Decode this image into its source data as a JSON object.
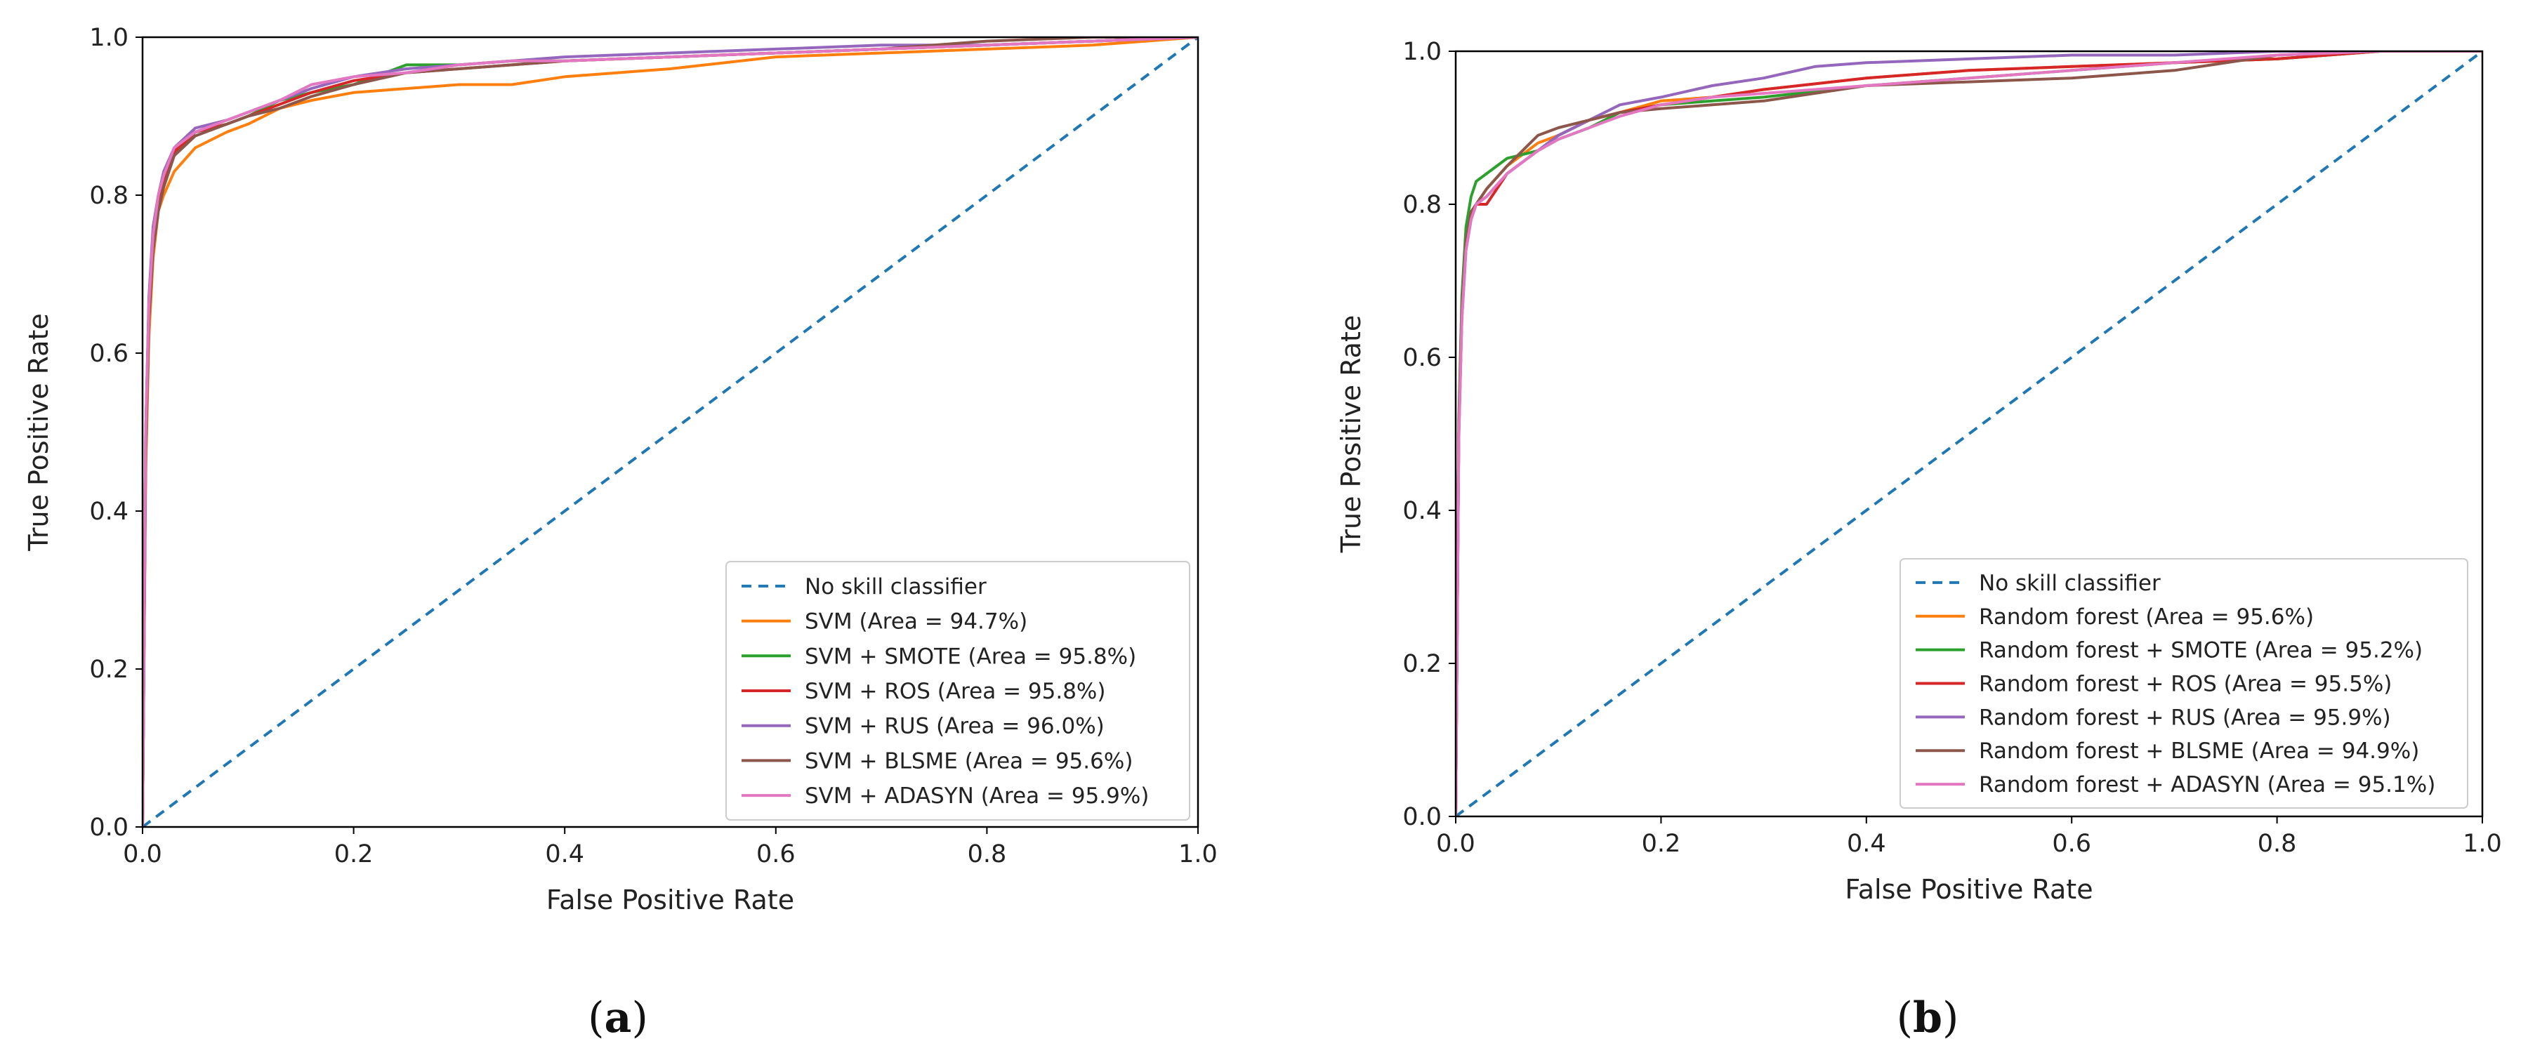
{
  "figure": {
    "captions": [
      {
        "open": "(",
        "letter": "a",
        "close": ")"
      },
      {
        "open": "(",
        "letter": "b",
        "close": ")"
      }
    ]
  },
  "chart_data": [
    {
      "type": "line",
      "title": "",
      "xlabel": "False Positive Rate",
      "ylabel": "True Positive Rate",
      "xlim": [
        0.0,
        1.0
      ],
      "ylim": [
        0.0,
        1.0
      ],
      "xticks": [
        "0.0",
        "0.2",
        "0.4",
        "0.6",
        "0.8",
        "1.0"
      ],
      "yticks": [
        "0.0",
        "0.2",
        "0.4",
        "0.6",
        "0.8",
        "1.0"
      ],
      "legend_position": "lower-right",
      "series": [
        {
          "name": "No skill classifier",
          "color": "#1f77b4",
          "dashed": true,
          "x": [
            0,
            1
          ],
          "y": [
            0,
            1
          ]
        },
        {
          "name": "SVM (Area = 94.7%)",
          "color": "#ff7f0e",
          "x": [
            0,
            0.003,
            0.006,
            0.01,
            0.015,
            0.02,
            0.03,
            0.05,
            0.08,
            0.1,
            0.13,
            0.16,
            0.2,
            0.25,
            0.3,
            0.35,
            0.4,
            0.5,
            0.6,
            0.7,
            0.8,
            0.9,
            1.0
          ],
          "y": [
            0,
            0.45,
            0.62,
            0.72,
            0.78,
            0.8,
            0.83,
            0.86,
            0.88,
            0.89,
            0.91,
            0.92,
            0.93,
            0.935,
            0.94,
            0.94,
            0.95,
            0.96,
            0.975,
            0.98,
            0.985,
            0.99,
            1.0
          ]
        },
        {
          "name": "SVM + SMOTE (Area = 95.8%)",
          "color": "#2ca02c",
          "x": [
            0,
            0.003,
            0.006,
            0.01,
            0.015,
            0.02,
            0.03,
            0.05,
            0.08,
            0.1,
            0.13,
            0.16,
            0.2,
            0.25,
            0.3,
            0.35,
            0.4,
            0.5,
            0.6,
            0.7,
            0.8,
            0.9,
            1.0
          ],
          "y": [
            0,
            0.5,
            0.66,
            0.74,
            0.79,
            0.82,
            0.85,
            0.88,
            0.89,
            0.9,
            0.92,
            0.93,
            0.94,
            0.965,
            0.965,
            0.97,
            0.97,
            0.975,
            0.98,
            0.985,
            0.99,
            0.995,
            1.0
          ]
        },
        {
          "name": "SVM + ROS (Area = 95.8%)",
          "color": "#d62728",
          "x": [
            0,
            0.003,
            0.006,
            0.01,
            0.015,
            0.02,
            0.03,
            0.05,
            0.08,
            0.1,
            0.13,
            0.16,
            0.2,
            0.25,
            0.3,
            0.35,
            0.4,
            0.5,
            0.6,
            0.7,
            0.8,
            0.9,
            1.0
          ],
          "y": [
            0,
            0.48,
            0.65,
            0.74,
            0.79,
            0.82,
            0.855,
            0.88,
            0.89,
            0.9,
            0.915,
            0.93,
            0.945,
            0.955,
            0.96,
            0.965,
            0.97,
            0.975,
            0.98,
            0.985,
            0.99,
            0.995,
            1.0
          ]
        },
        {
          "name": "SVM + RUS (Area = 96.0%)",
          "color": "#9467bd",
          "x": [
            0,
            0.003,
            0.006,
            0.01,
            0.015,
            0.02,
            0.03,
            0.05,
            0.08,
            0.1,
            0.13,
            0.16,
            0.2,
            0.25,
            0.3,
            0.35,
            0.4,
            0.5,
            0.6,
            0.7,
            0.8,
            0.9,
            1.0
          ],
          "y": [
            0,
            0.5,
            0.67,
            0.76,
            0.8,
            0.83,
            0.86,
            0.885,
            0.895,
            0.905,
            0.92,
            0.935,
            0.95,
            0.96,
            0.965,
            0.97,
            0.975,
            0.98,
            0.985,
            0.99,
            0.99,
            0.995,
            1.0
          ]
        },
        {
          "name": "SVM + BLSME (Area = 95.6%)",
          "color": "#8c564b",
          "x": [
            0,
            0.003,
            0.006,
            0.01,
            0.015,
            0.02,
            0.03,
            0.05,
            0.08,
            0.1,
            0.13,
            0.16,
            0.2,
            0.25,
            0.3,
            0.35,
            0.4,
            0.5,
            0.6,
            0.7,
            0.8,
            0.9,
            1.0
          ],
          "y": [
            0,
            0.47,
            0.64,
            0.73,
            0.78,
            0.81,
            0.85,
            0.875,
            0.89,
            0.9,
            0.91,
            0.925,
            0.94,
            0.955,
            0.96,
            0.965,
            0.97,
            0.975,
            0.98,
            0.985,
            0.995,
            1.0,
            1.0
          ]
        },
        {
          "name": "SVM + ADASYN (Area = 95.9%)",
          "color": "#e377c2",
          "x": [
            0,
            0.003,
            0.006,
            0.01,
            0.015,
            0.02,
            0.03,
            0.05,
            0.08,
            0.1,
            0.13,
            0.16,
            0.2,
            0.25,
            0.3,
            0.35,
            0.4,
            0.5,
            0.6,
            0.7,
            0.8,
            0.9,
            1.0
          ],
          "y": [
            0,
            0.5,
            0.66,
            0.75,
            0.8,
            0.825,
            0.86,
            0.88,
            0.895,
            0.905,
            0.92,
            0.94,
            0.95,
            0.955,
            0.965,
            0.97,
            0.97,
            0.975,
            0.98,
            0.985,
            0.99,
            0.995,
            1.0
          ]
        }
      ]
    },
    {
      "type": "line",
      "title": "",
      "xlabel": "False Positive Rate",
      "ylabel": "True Positive Rate",
      "xlim": [
        0.0,
        1.0
      ],
      "ylim": [
        0.0,
        1.0
      ],
      "xticks": [
        "0.0",
        "0.2",
        "0.4",
        "0.6",
        "0.8",
        "1.0"
      ],
      "yticks": [
        "0.0",
        "0.2",
        "0.4",
        "0.6",
        "0.8",
        "1.0"
      ],
      "legend_position": "lower-right",
      "series": [
        {
          "name": "No skill classifier",
          "color": "#1f77b4",
          "dashed": true,
          "x": [
            0,
            1
          ],
          "y": [
            0,
            1
          ]
        },
        {
          "name": "Random forest (Area = 95.6%)",
          "color": "#ff7f0e",
          "x": [
            0,
            0.003,
            0.006,
            0.01,
            0.015,
            0.02,
            0.03,
            0.05,
            0.08,
            0.1,
            0.13,
            0.16,
            0.2,
            0.25,
            0.3,
            0.4,
            0.5,
            0.6,
            0.7,
            0.8,
            0.9,
            1.0
          ],
          "y": [
            0,
            0.5,
            0.66,
            0.75,
            0.79,
            0.8,
            0.82,
            0.85,
            0.88,
            0.89,
            0.91,
            0.92,
            0.935,
            0.94,
            0.95,
            0.965,
            0.975,
            0.98,
            0.985,
            0.99,
            1.0,
            1.0
          ]
        },
        {
          "name": "Random forest + SMOTE (Area = 95.2%)",
          "color": "#2ca02c",
          "x": [
            0,
            0.003,
            0.006,
            0.01,
            0.015,
            0.02,
            0.03,
            0.05,
            0.08,
            0.1,
            0.13,
            0.16,
            0.2,
            0.25,
            0.3,
            0.4,
            0.5,
            0.6,
            0.7,
            0.8,
            0.9,
            1.0
          ],
          "y": [
            0,
            0.52,
            0.68,
            0.77,
            0.81,
            0.83,
            0.84,
            0.86,
            0.87,
            0.885,
            0.9,
            0.92,
            0.93,
            0.935,
            0.94,
            0.955,
            0.965,
            0.975,
            0.985,
            0.99,
            1.0,
            1.0
          ]
        },
        {
          "name": "Random forest + ROS (Area = 95.5%)",
          "color": "#d62728",
          "x": [
            0,
            0.003,
            0.006,
            0.01,
            0.015,
            0.02,
            0.03,
            0.05,
            0.08,
            0.1,
            0.13,
            0.16,
            0.2,
            0.25,
            0.3,
            0.4,
            0.5,
            0.6,
            0.7,
            0.8,
            0.9,
            1.0
          ],
          "y": [
            0,
            0.5,
            0.66,
            0.75,
            0.79,
            0.8,
            0.8,
            0.84,
            0.87,
            0.89,
            0.91,
            0.92,
            0.93,
            0.94,
            0.95,
            0.965,
            0.975,
            0.98,
            0.985,
            0.99,
            1.0,
            1.0
          ]
        },
        {
          "name": "Random forest + RUS (Area = 95.9%)",
          "color": "#9467bd",
          "x": [
            0,
            0.003,
            0.006,
            0.01,
            0.015,
            0.02,
            0.03,
            0.05,
            0.08,
            0.1,
            0.13,
            0.16,
            0.2,
            0.25,
            0.3,
            0.35,
            0.4,
            0.5,
            0.6,
            0.7,
            0.8,
            0.9,
            1.0
          ],
          "y": [
            0,
            0.5,
            0.65,
            0.74,
            0.78,
            0.8,
            0.81,
            0.84,
            0.87,
            0.89,
            0.91,
            0.93,
            0.94,
            0.955,
            0.965,
            0.98,
            0.985,
            0.99,
            0.995,
            0.995,
            1.0,
            1.0,
            1.0
          ]
        },
        {
          "name": "Random forest + BLSME (Area = 94.9%)",
          "color": "#8c564b",
          "x": [
            0,
            0.003,
            0.006,
            0.01,
            0.015,
            0.02,
            0.03,
            0.05,
            0.08,
            0.1,
            0.13,
            0.16,
            0.2,
            0.25,
            0.3,
            0.4,
            0.5,
            0.6,
            0.7,
            0.8,
            0.9,
            1.0
          ],
          "y": [
            0,
            0.5,
            0.66,
            0.75,
            0.79,
            0.8,
            0.82,
            0.85,
            0.89,
            0.9,
            0.91,
            0.92,
            0.925,
            0.93,
            0.935,
            0.955,
            0.96,
            0.965,
            0.975,
            0.995,
            1.0,
            1.0
          ]
        },
        {
          "name": "Random forest + ADASYN (Area = 95.1%)",
          "color": "#e377c2",
          "x": [
            0,
            0.003,
            0.006,
            0.01,
            0.015,
            0.02,
            0.03,
            0.05,
            0.08,
            0.1,
            0.13,
            0.16,
            0.2,
            0.25,
            0.3,
            0.4,
            0.5,
            0.6,
            0.7,
            0.8,
            0.9,
            1.0
          ],
          "y": [
            0,
            0.49,
            0.65,
            0.74,
            0.78,
            0.8,
            0.81,
            0.84,
            0.87,
            0.885,
            0.9,
            0.915,
            0.93,
            0.94,
            0.945,
            0.955,
            0.965,
            0.975,
            0.985,
            0.995,
            1.0,
            1.0
          ]
        }
      ]
    }
  ]
}
